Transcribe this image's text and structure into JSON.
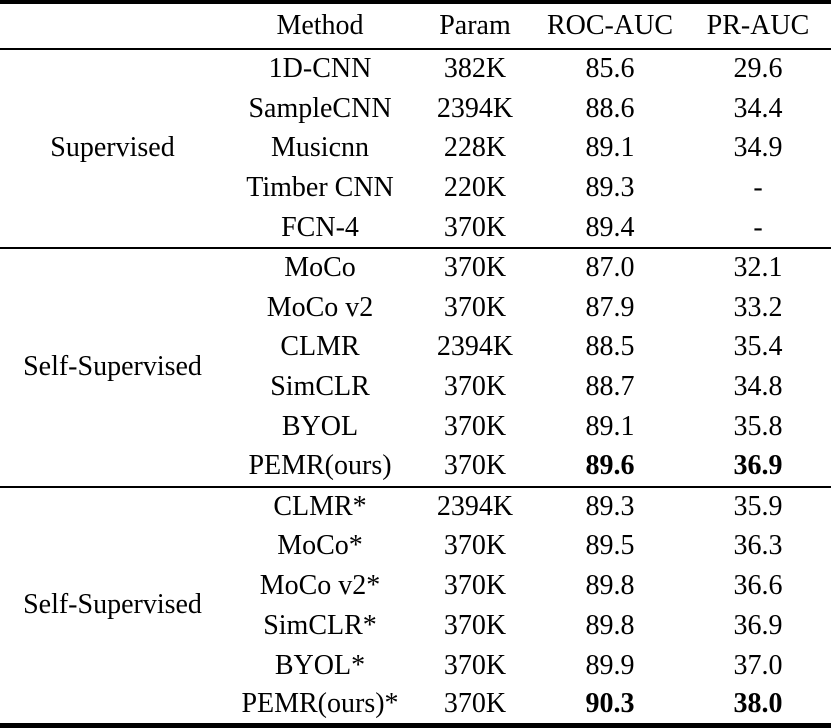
{
  "page": {
    "background_color": "#ffffff",
    "text_color": "#000000",
    "rule_color": "#000000"
  },
  "table": {
    "corner_header": "",
    "columns": [
      "Method",
      "Param",
      "ROC-AUC",
      "PR-AUC"
    ],
    "groups": [
      {
        "label": "Supervised",
        "rows": [
          {
            "method": "1D-CNN",
            "param": "382K",
            "roc_auc": "85.6",
            "pr_auc": "29.6",
            "bold_metrics": false
          },
          {
            "method": "SampleCNN",
            "param": "2394K",
            "roc_auc": "88.6",
            "pr_auc": "34.4",
            "bold_metrics": false
          },
          {
            "method": "Musicnn",
            "param": "228K",
            "roc_auc": "89.1",
            "pr_auc": "34.9",
            "bold_metrics": false
          },
          {
            "method": "Timber CNN",
            "param": "220K",
            "roc_auc": "89.3",
            "pr_auc": "-",
            "bold_metrics": false
          },
          {
            "method": "FCN-4",
            "param": "370K",
            "roc_auc": "89.4",
            "pr_auc": "-",
            "bold_metrics": false
          }
        ]
      },
      {
        "label": "Self-Supervised",
        "rows": [
          {
            "method": "MoCo",
            "param": "370K",
            "roc_auc": "87.0",
            "pr_auc": "32.1",
            "bold_metrics": false
          },
          {
            "method": "MoCo v2",
            "param": "370K",
            "roc_auc": "87.9",
            "pr_auc": "33.2",
            "bold_metrics": false
          },
          {
            "method": "CLMR",
            "param": "2394K",
            "roc_auc": "88.5",
            "pr_auc": "35.4",
            "bold_metrics": false
          },
          {
            "method": "SimCLR",
            "param": "370K",
            "roc_auc": "88.7",
            "pr_auc": "34.8",
            "bold_metrics": false
          },
          {
            "method": "BYOL",
            "param": "370K",
            "roc_auc": "89.1",
            "pr_auc": "35.8",
            "bold_metrics": false
          },
          {
            "method": "PEMR(ours)",
            "param": "370K",
            "roc_auc": "89.6",
            "pr_auc": "36.9",
            "bold_metrics": true
          }
        ]
      },
      {
        "label": "Self-Supervised",
        "rows": [
          {
            "method": "CLMR*",
            "param": "2394K",
            "roc_auc": "89.3",
            "pr_auc": "35.9",
            "bold_metrics": false
          },
          {
            "method": "MoCo*",
            "param": "370K",
            "roc_auc": "89.5",
            "pr_auc": "36.3",
            "bold_metrics": false
          },
          {
            "method": "MoCo v2*",
            "param": "370K",
            "roc_auc": "89.8",
            "pr_auc": "36.6",
            "bold_metrics": false
          },
          {
            "method": "SimCLR*",
            "param": "370K",
            "roc_auc": "89.8",
            "pr_auc": "36.9",
            "bold_metrics": false
          },
          {
            "method": "BYOL*",
            "param": "370K",
            "roc_auc": "89.9",
            "pr_auc": "37.0",
            "bold_metrics": false
          },
          {
            "method": "PEMR(ours)*",
            "param": "370K",
            "roc_auc": "90.3",
            "pr_auc": "38.0",
            "bold_metrics": true
          }
        ]
      }
    ]
  }
}
